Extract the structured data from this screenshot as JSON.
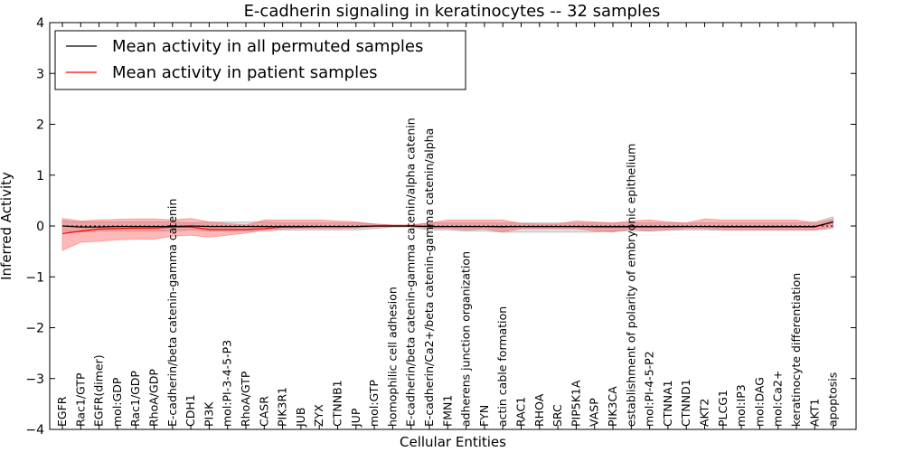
{
  "chart_data": {
    "type": "line",
    "title": "E-cadherin signaling in keratinocytes -- 32 samples",
    "xlabel": "Cellular Entities",
    "ylabel": "Inferred Activity",
    "ylim": [
      -4,
      4
    ],
    "yticks": [
      -4,
      -3,
      -2,
      -1,
      0,
      1,
      2,
      3,
      4
    ],
    "ytick_labels": [
      "−4",
      "−3",
      "−2",
      "−1",
      "0",
      "1",
      "2",
      "3",
      "4"
    ],
    "grid": false,
    "legend_position": "top-left",
    "zero_reference_line": 0,
    "categories": [
      "EGFR",
      "Rac1/GTP",
      "EGFR(dimer)",
      "mol:GDP",
      "Rac1/GDP",
      "RhoA/GDP",
      "E-cadherin/beta catenin-gamma catenin",
      "CDH1",
      "PI3K",
      "mol:PI-3-4-5-P3",
      "RhoA/GTP",
      "CASR",
      "PIK3R1",
      "JUB",
      "ZYX",
      "CTNNB1",
      "JUP",
      "mol:GTP",
      "homophilic cell adhesion",
      "E-cadherin/beta catenin-gamma catenin/alpha catenin",
      "E-cadherin/Ca2+/beta catenin-gamma catenin/alpha",
      "FMN1",
      "adherens junction organization",
      "FYN",
      "actin cable formation",
      "RAC1",
      "RHOA",
      "SRC",
      "PIP5K1A",
      "VASP",
      "PIK3CA",
      "establishment of polarity of embryonic epithelium",
      "mol:PI-4-5-P2",
      "CTNNA1",
      "CTNND1",
      "AKT2",
      "PLCG1",
      "mol:IP3",
      "mol:DAG",
      "mol:Ca2+",
      "keratinocyte differentiation",
      "AKT1",
      "apoptosis"
    ],
    "series": [
      {
        "name": "Mean activity in all permuted samples",
        "color": "#000000",
        "values": [
          0,
          -0.02,
          -0.02,
          -0.01,
          -0.01,
          -0.01,
          -0.01,
          0,
          -0.01,
          -0.01,
          -0.01,
          -0.01,
          -0.01,
          -0.01,
          -0.01,
          -0.01,
          -0.01,
          0,
          0,
          0,
          -0.01,
          -0.01,
          -0.01,
          -0.01,
          -0.01,
          -0.01,
          -0.01,
          -0.01,
          -0.01,
          -0.01,
          -0.01,
          -0.01,
          -0.01,
          -0.01,
          -0.01,
          -0.01,
          -0.01,
          -0.01,
          -0.01,
          -0.01,
          -0.01,
          -0.01,
          0.08
        ],
        "band_lower": [
          -0.1,
          -0.12,
          -0.1,
          -0.1,
          -0.1,
          -0.1,
          -0.1,
          -0.08,
          -0.1,
          -0.1,
          -0.1,
          -0.1,
          -0.08,
          -0.08,
          -0.08,
          -0.08,
          -0.08,
          -0.05,
          -0.02,
          -0.02,
          -0.08,
          -0.08,
          -0.1,
          -0.1,
          -0.12,
          -0.12,
          -0.12,
          -0.12,
          -0.12,
          -0.12,
          -0.1,
          -0.1,
          -0.1,
          -0.08,
          -0.08,
          -0.08,
          -0.08,
          -0.08,
          -0.08,
          -0.08,
          -0.08,
          -0.08,
          -0.05
        ],
        "band_upper": [
          0.1,
          0.08,
          0.08,
          0.08,
          0.08,
          0.08,
          0.08,
          0.06,
          0.08,
          0.08,
          0.08,
          0.08,
          0.06,
          0.06,
          0.06,
          0.06,
          0.06,
          0.04,
          0.02,
          0.02,
          0.06,
          0.06,
          0.06,
          0.06,
          0.06,
          0.06,
          0.06,
          0.06,
          0.06,
          0.06,
          0.06,
          0.06,
          0.06,
          0.06,
          0.06,
          0.06,
          0.06,
          0.06,
          0.06,
          0.06,
          0.06,
          0.08,
          0.18
        ]
      },
      {
        "name": "Mean activity in patient samples",
        "color": "#ff0000",
        "values": [
          -0.15,
          -0.1,
          -0.06,
          -0.05,
          -0.04,
          -0.04,
          -0.02,
          -0.02,
          -0.07,
          -0.07,
          -0.07,
          -0.05,
          -0.02,
          -0.02,
          -0.01,
          -0.01,
          -0.01,
          0,
          0,
          0,
          -0.01,
          -0.01,
          -0.01,
          -0.01,
          -0.02,
          -0.01,
          -0.01,
          -0.01,
          -0.01,
          -0.02,
          -0.02,
          -0.02,
          -0.02,
          -0.02,
          -0.01,
          -0.01,
          -0.02,
          -0.02,
          -0.02,
          -0.02,
          -0.02,
          -0.02,
          0.08
        ],
        "band_lower": [
          -0.48,
          -0.32,
          -0.3,
          -0.27,
          -0.26,
          -0.26,
          -0.2,
          -0.18,
          -0.22,
          -0.18,
          -0.14,
          -0.08,
          -0.06,
          -0.05,
          -0.05,
          -0.05,
          -0.04,
          -0.02,
          -0.01,
          -0.01,
          -0.05,
          -0.05,
          -0.08,
          -0.06,
          -0.12,
          -0.05,
          -0.05,
          -0.05,
          -0.05,
          -0.1,
          -0.12,
          -0.06,
          -0.1,
          -0.08,
          -0.05,
          -0.05,
          -0.08,
          -0.08,
          -0.08,
          -0.08,
          -0.08,
          -0.08,
          -0.02
        ],
        "band_upper": [
          0.15,
          0.1,
          0.12,
          0.13,
          0.14,
          0.14,
          0.12,
          0.15,
          0.08,
          0.05,
          0.02,
          0.12,
          0.12,
          0.12,
          0.12,
          0.1,
          0.08,
          0.04,
          0.02,
          0.02,
          0.06,
          0.12,
          0.12,
          0.12,
          0.12,
          0.05,
          0.04,
          0.04,
          0.1,
          0.08,
          0.06,
          0.1,
          0.12,
          0.08,
          0.06,
          0.14,
          0.12,
          0.12,
          0.12,
          0.12,
          0.12,
          0.06,
          0.14
        ]
      }
    ]
  }
}
